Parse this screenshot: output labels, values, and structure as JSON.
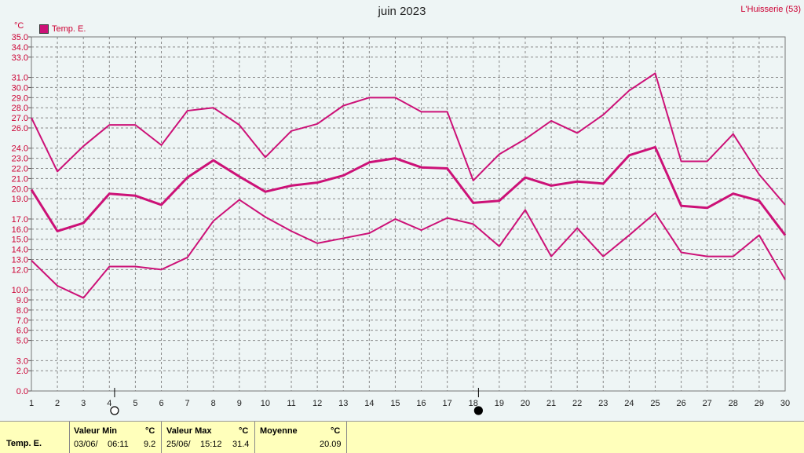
{
  "header": {
    "title": "juin 2023",
    "station": "L'Huisserie (53)",
    "unit": "°C"
  },
  "legend": {
    "label": "Temp. E.",
    "color": "#cc1177"
  },
  "chart_data": {
    "type": "line",
    "title": "juin 2023",
    "ylabel": "°C",
    "ylim": [
      0,
      35
    ],
    "grid": true,
    "legend_position": "top-left",
    "y_ticks": [
      0.0,
      2.0,
      3.0,
      5.0,
      6.0,
      7.0,
      8.0,
      9.0,
      10.0,
      12.0,
      13.0,
      14.0,
      15.0,
      16.0,
      17.0,
      19.0,
      20.0,
      21.0,
      22.0,
      23.0,
      24.0,
      26.0,
      27.0,
      28.0,
      29.0,
      30.0,
      31.0,
      33.0,
      34.0,
      35.0
    ],
    "x": [
      1,
      2,
      3,
      4,
      5,
      6,
      7,
      8,
      9,
      10,
      11,
      12,
      13,
      14,
      15,
      16,
      17,
      18,
      19,
      20,
      21,
      22,
      23,
      24,
      25,
      26,
      27,
      28,
      29,
      30
    ],
    "series": [
      {
        "role": "max",
        "values": [
          27.0,
          21.7,
          24.2,
          26.3,
          26.3,
          24.3,
          27.7,
          28.0,
          26.3,
          23.1,
          25.7,
          26.4,
          28.2,
          29.0,
          29.0,
          27.6,
          27.6,
          20.8,
          23.4,
          24.9,
          26.7,
          25.5,
          27.3,
          29.7,
          31.4,
          22.7,
          22.7,
          25.4,
          21.4,
          18.4
        ]
      },
      {
        "role": "mean",
        "values": [
          19.9,
          15.8,
          16.6,
          19.5,
          19.3,
          18.4,
          21.1,
          22.8,
          21.2,
          19.7,
          20.3,
          20.6,
          21.3,
          22.6,
          23.0,
          22.1,
          22.0,
          18.6,
          18.8,
          21.1,
          20.3,
          20.7,
          20.5,
          23.3,
          24.1,
          18.3,
          18.1,
          19.5,
          18.8,
          15.4
        ]
      },
      {
        "role": "min",
        "values": [
          12.9,
          10.4,
          9.2,
          12.3,
          12.3,
          12.0,
          13.2,
          16.8,
          18.9,
          17.2,
          15.8,
          14.6,
          15.1,
          15.6,
          17.0,
          15.9,
          17.1,
          16.5,
          14.3,
          17.9,
          13.3,
          16.1,
          13.3,
          15.4,
          17.6,
          13.7,
          13.3,
          13.3,
          15.4,
          11.0
        ]
      }
    ],
    "moon_phases": [
      {
        "day": 4.2,
        "phase": "full"
      },
      {
        "day": 18.2,
        "phase": "new"
      }
    ]
  },
  "summary": {
    "row_label": "Temp. E.",
    "min": {
      "header": "Valeur Min",
      "unit": "°C",
      "date": "03/06/",
      "time": "06:11",
      "value": "9.2"
    },
    "max": {
      "header": "Valeur Max",
      "unit": "°C",
      "date": "25/06/",
      "time": "15:12",
      "value": "31.4"
    },
    "avg": {
      "header": "Moyenne",
      "unit": "°C",
      "value": "20.09"
    }
  }
}
